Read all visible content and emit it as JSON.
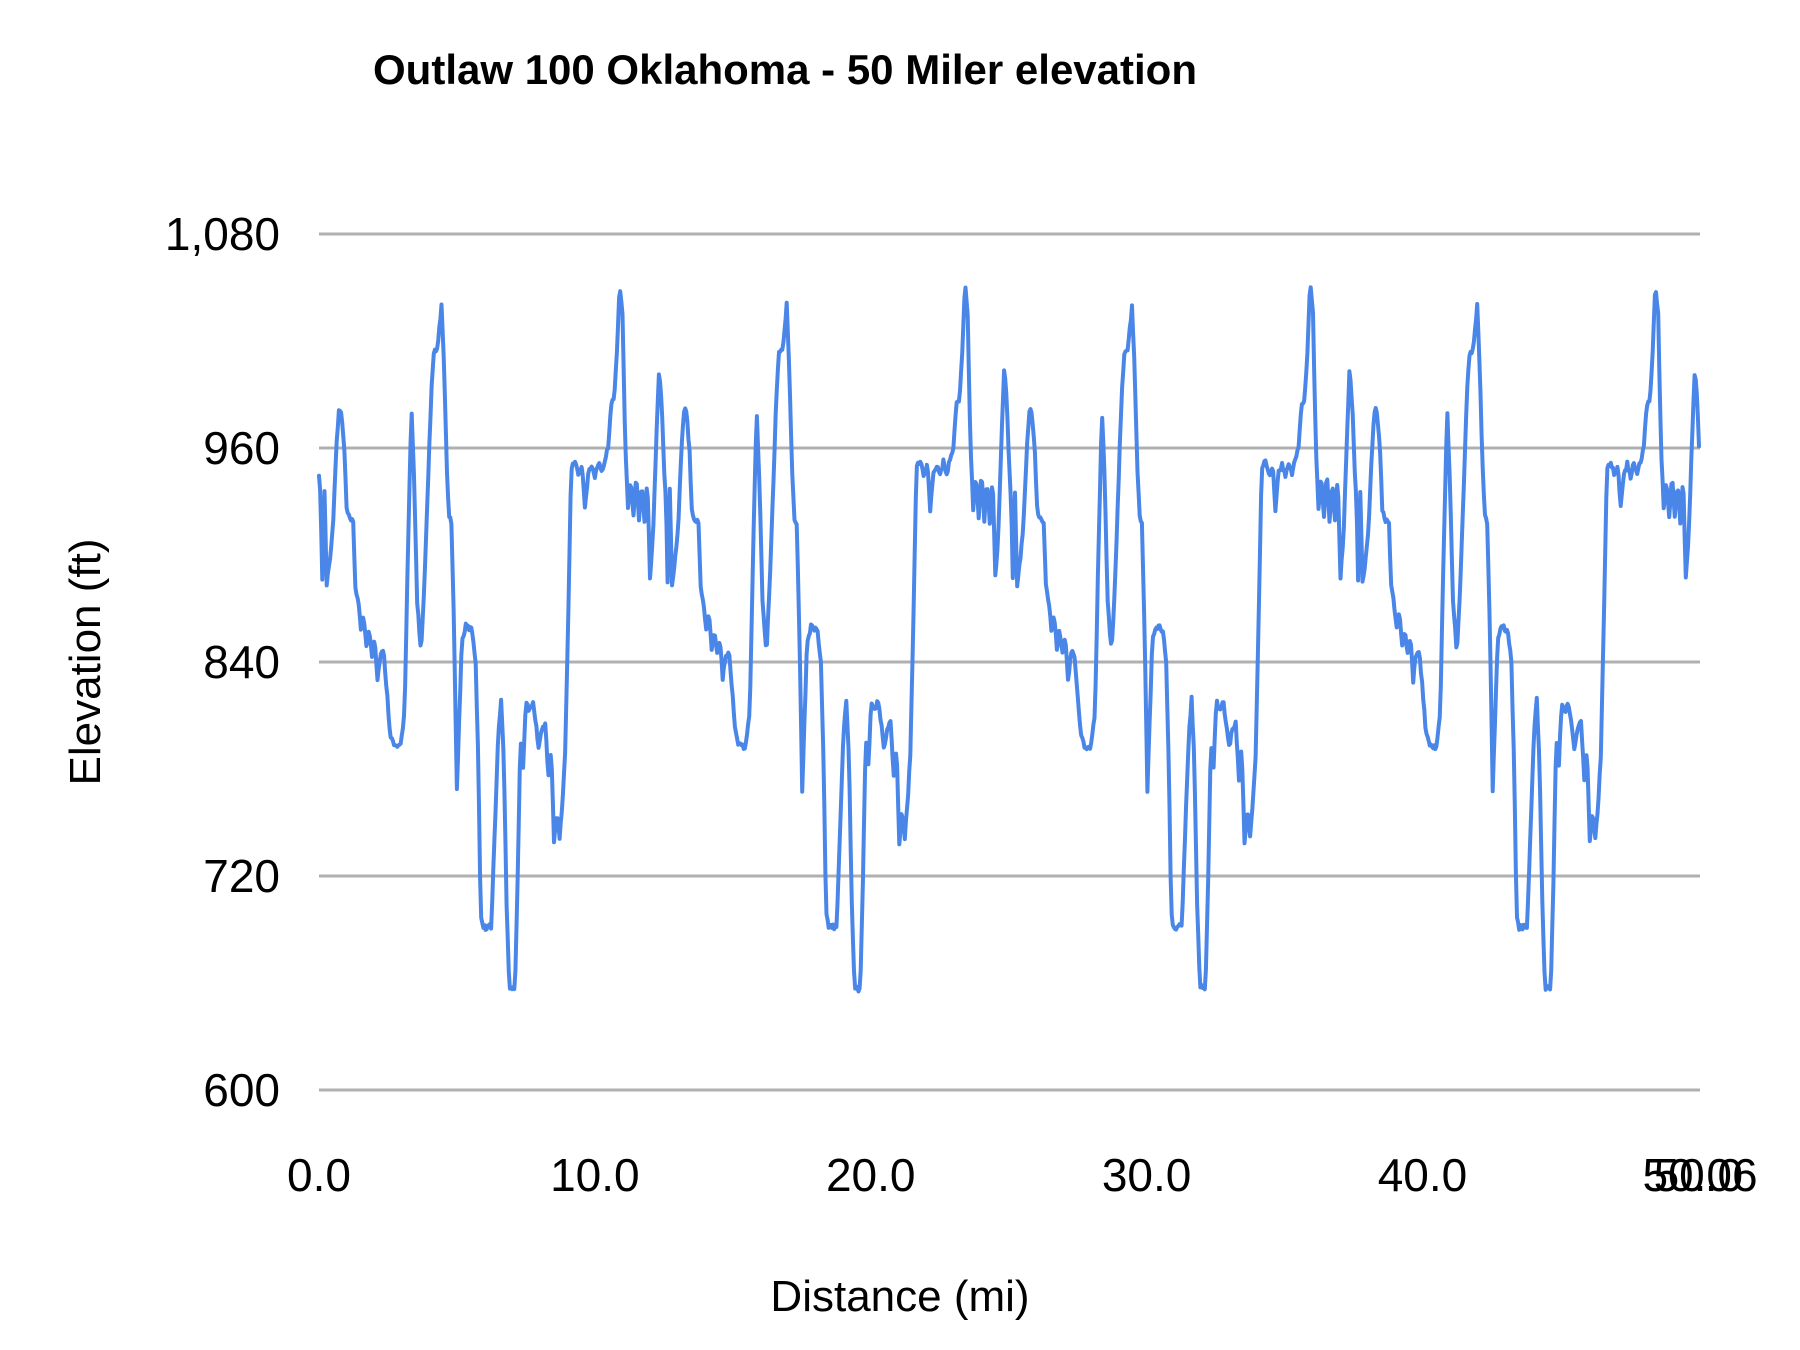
{
  "title": "Outlaw 100 Oklahoma - 50 Miler elevation",
  "chart_data": {
    "type": "line",
    "title": "Outlaw 100 Oklahoma - 50 Miler elevation",
    "xlabel": "Distance (mi)",
    "ylabel": "Elevation (ft)",
    "xlim": [
      0,
      50.06
    ],
    "ylim": [
      600,
      1080
    ],
    "grid": true,
    "legend": "none",
    "line_color": "#4a86e8",
    "gridline_color": "#b0b0b0",
    "text_color": "#000000",
    "x_ticks": [
      {
        "label": "0.0",
        "value": 0
      },
      {
        "label": "10.0",
        "value": 10
      },
      {
        "label": "20.0",
        "value": 20
      },
      {
        "label": "30.0",
        "value": 30
      },
      {
        "label": "40.0",
        "value": 40
      },
      {
        "label": "50.0",
        "value": 50
      }
    ],
    "x_end_tick": {
      "label": "50.06",
      "value": 50.06
    },
    "y_ticks": [
      {
        "label": "600",
        "value": 600
      },
      {
        "label": "720",
        "value": 720
      },
      {
        "label": "840",
        "value": 840
      },
      {
        "label": "960",
        "value": 960
      },
      {
        "label": "1,080",
        "value": 1080
      }
    ],
    "series": [
      {
        "name": "Elevation (ft)",
        "structure": "repeated-laps",
        "laps": 4,
        "lap_length_mi": 12.515,
        "total_mi": 50.06,
        "lap_profile": [
          [
            0.0,
            946
          ],
          [
            0.06,
            930
          ],
          [
            0.12,
            886
          ],
          [
            0.2,
            936
          ],
          [
            0.28,
            884
          ],
          [
            0.38,
            896
          ],
          [
            0.5,
            914
          ],
          [
            0.62,
            958
          ],
          [
            0.73,
            983
          ],
          [
            0.82,
            978
          ],
          [
            0.92,
            958
          ],
          [
            1.0,
            926
          ],
          [
            1.1,
            920
          ],
          [
            1.24,
            918
          ],
          [
            1.32,
            882
          ],
          [
            1.42,
            874
          ],
          [
            1.52,
            858
          ],
          [
            1.62,
            867
          ],
          [
            1.72,
            848
          ],
          [
            1.82,
            858
          ],
          [
            1.92,
            844
          ],
          [
            2.02,
            854
          ],
          [
            2.12,
            830
          ],
          [
            2.22,
            844
          ],
          [
            2.34,
            846
          ],
          [
            2.46,
            824
          ],
          [
            2.58,
            800
          ],
          [
            2.72,
            793
          ],
          [
            2.95,
            792
          ],
          [
            3.1,
            812
          ],
          [
            3.22,
            900
          ],
          [
            3.35,
            982
          ],
          [
            3.44,
            946
          ],
          [
            3.56,
            874
          ],
          [
            3.7,
            845
          ],
          [
            3.82,
            882
          ],
          [
            3.95,
            938
          ],
          [
            4.06,
            988
          ],
          [
            4.16,
            1013
          ],
          [
            4.3,
            1016
          ],
          [
            4.44,
            1040
          ],
          [
            4.54,
            1002
          ],
          [
            4.64,
            946
          ],
          [
            4.72,
            921
          ],
          [
            4.8,
            918
          ],
          [
            4.9,
            856
          ],
          [
            5.0,
            768
          ],
          [
            5.1,
            815
          ],
          [
            5.18,
            852
          ],
          [
            5.32,
            860
          ],
          [
            5.55,
            858
          ],
          [
            5.68,
            840
          ],
          [
            5.78,
            780
          ],
          [
            5.86,
            700
          ],
          [
            5.95,
            691
          ],
          [
            6.25,
            692
          ],
          [
            6.38,
            750
          ],
          [
            6.5,
            800
          ],
          [
            6.6,
            819
          ],
          [
            6.7,
            784
          ],
          [
            6.8,
            705
          ],
          [
            6.9,
            658
          ],
          [
            7.1,
            656
          ],
          [
            7.2,
            716
          ],
          [
            7.3,
            796
          ],
          [
            7.4,
            782
          ],
          [
            7.5,
            818
          ],
          [
            7.62,
            812
          ],
          [
            7.74,
            818
          ],
          [
            7.86,
            806
          ],
          [
            7.96,
            792
          ],
          [
            8.08,
            802
          ],
          [
            8.2,
            806
          ],
          [
            8.32,
            775
          ],
          [
            8.42,
            792
          ],
          [
            8.52,
            738
          ],
          [
            8.62,
            757
          ],
          [
            8.72,
            742
          ],
          [
            8.82,
            760
          ],
          [
            8.92,
            788
          ],
          [
            9.02,
            855
          ],
          [
            9.14,
            948
          ],
          [
            9.28,
            953
          ],
          [
            9.42,
            944
          ],
          [
            9.54,
            950
          ],
          [
            9.64,
            926
          ],
          [
            9.76,
            946
          ],
          [
            9.88,
            951
          ],
          [
            10.0,
            944
          ],
          [
            10.12,
            952
          ],
          [
            10.24,
            946
          ],
          [
            10.36,
            953
          ],
          [
            10.48,
            960
          ],
          [
            10.58,
            984
          ],
          [
            10.7,
            987
          ],
          [
            10.8,
            1014
          ],
          [
            10.9,
            1052
          ],
          [
            11.0,
            1035
          ],
          [
            11.1,
            962
          ],
          [
            11.2,
            926
          ],
          [
            11.3,
            943
          ],
          [
            11.4,
            921
          ],
          [
            11.5,
            946
          ],
          [
            11.6,
            920
          ],
          [
            11.7,
            941
          ],
          [
            11.8,
            918
          ],
          [
            11.9,
            944
          ],
          [
            12.0,
            888
          ],
          [
            12.1,
            908
          ],
          [
            12.22,
            962
          ],
          [
            12.33,
            1006
          ],
          [
            12.43,
            982
          ],
          [
            12.515,
            946
          ]
        ]
      }
    ]
  }
}
